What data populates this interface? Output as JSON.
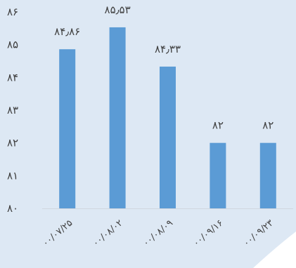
{
  "chart_data": {
    "type": "bar",
    "categories": [
      "۰۰/۰۷/۲۵",
      "۰۰/۰۸/۰۲",
      "۰۰/۰۸/۰۹",
      "۰۰/۰۹/۱۶",
      "۰۰/۰۹/۲۳"
    ],
    "values": [
      84.86,
      85.53,
      84.33,
      82,
      82
    ],
    "value_labels": [
      "۸۴٫۸۶",
      "۸۵٫۵۳",
      "۸۴٫۳۳",
      "۸۲",
      "۸۲"
    ],
    "y_ticks": [
      80,
      81,
      82,
      83,
      84,
      85,
      86
    ],
    "y_tick_labels": [
      "۸۰",
      "۸۱",
      "۸۲",
      "۸۳",
      "۸۴",
      "۸۵",
      "۸۶"
    ],
    "ylim": [
      80,
      86
    ],
    "title": "",
    "xlabel": "",
    "ylabel": "",
    "grid": false,
    "legend": "none",
    "colors": {
      "bar": "#5b9bd5",
      "background": "#dde8f4",
      "axis": "#d0d7e0",
      "text": "#404040"
    }
  }
}
